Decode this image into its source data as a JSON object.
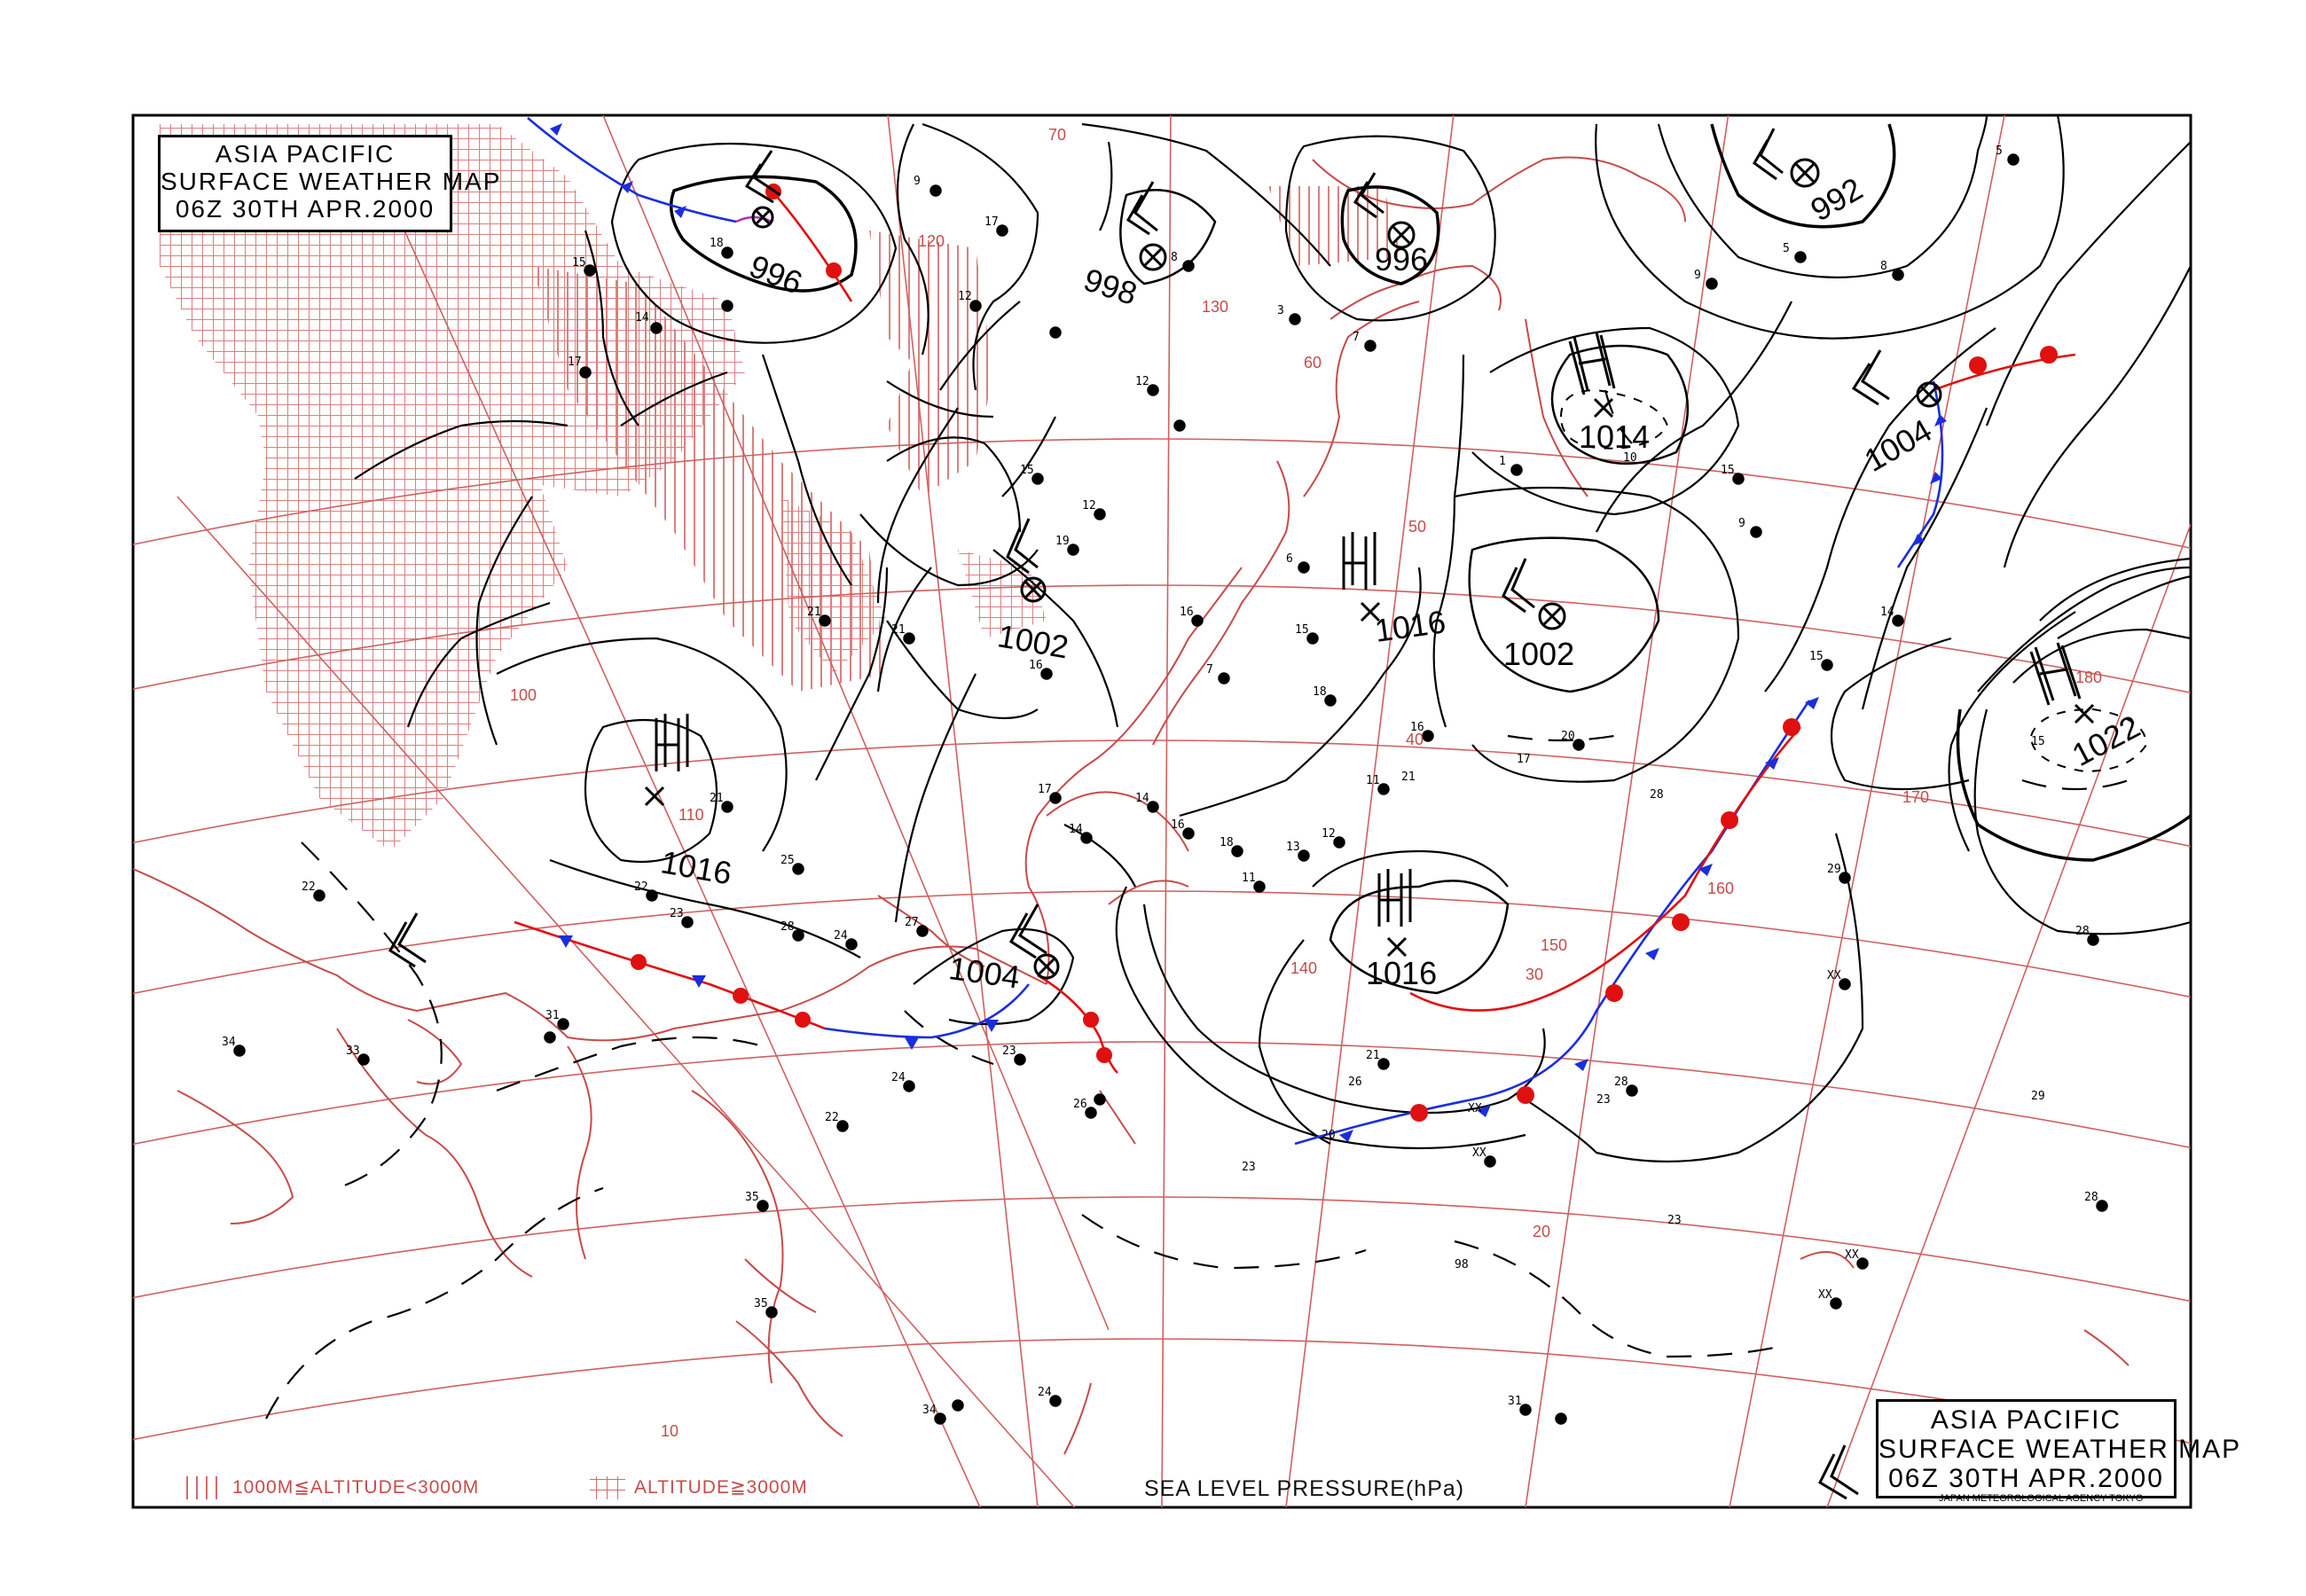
{
  "title": {
    "line1": "ASIA PACIFIC",
    "line2": "SURFACE WEATHER MAP",
    "line3": "06Z 30TH APR.2000"
  },
  "footer": {
    "agency": "JAPAN METEOROLOGICAL AGENCY TOKYO",
    "legend_mid": "1000M≦ALTITUDE<3000M",
    "legend_high": "ALTITUDE≧3000M",
    "sea_level": "SEA LEVEL PRESSURE(hPa)"
  },
  "colors": {
    "isobar": "#000000",
    "grid": "#c84a4a",
    "coast": "#c84a4a",
    "warm_front": "#e01010",
    "cold_front": "#1a2ee0"
  },
  "pressure_systems": [
    {
      "type": "L",
      "value": "996"
    },
    {
      "type": "L",
      "value": "998"
    },
    {
      "type": "L",
      "value": ""
    },
    {
      "type": "L",
      "value": "996"
    },
    {
      "type": "L",
      "value": "992"
    },
    {
      "type": "H",
      "value": "1014"
    },
    {
      "type": "L",
      "value": "1004"
    },
    {
      "type": "L",
      "value": "1002"
    },
    {
      "type": "H",
      "value": "1016"
    },
    {
      "type": "L",
      "value": "1002"
    },
    {
      "type": "H",
      "value": "1016"
    },
    {
      "type": "L",
      "value": "1004"
    },
    {
      "type": "H",
      "value": "1016"
    },
    {
      "type": "H",
      "value": "1022"
    },
    {
      "type": "L",
      "value": ""
    },
    {
      "type": "L",
      "value": ""
    }
  ],
  "grid_labels": {
    "lat": [
      "10",
      "20",
      "30",
      "40",
      "50",
      "60",
      "70"
    ],
    "lon": [
      "100",
      "110",
      "120",
      "130",
      "140",
      "150",
      "160",
      "170",
      "180"
    ]
  }
}
